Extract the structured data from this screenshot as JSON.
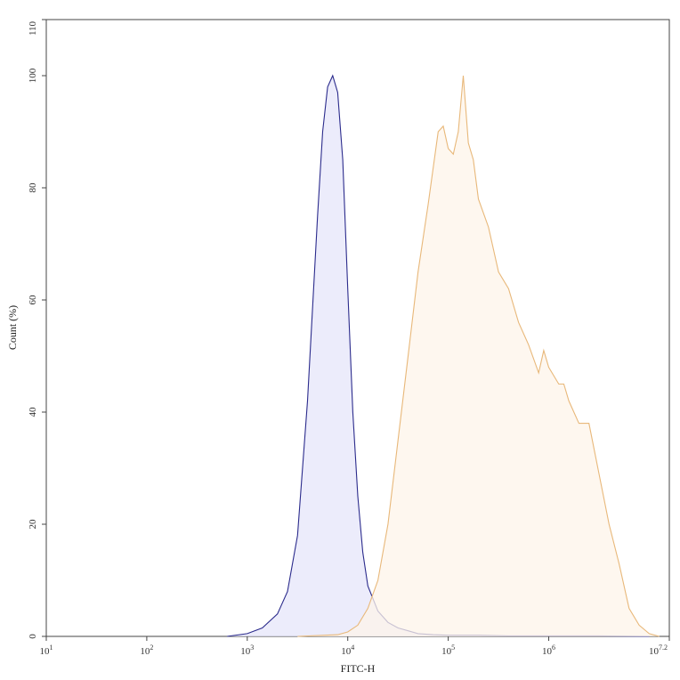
{
  "chart_data": {
    "type": "area",
    "xlabel": "FITC-H",
    "ylabel": "Count (%)",
    "xscale": "log",
    "xlim": [
      1,
      7.2
    ],
    "ylim": [
      0,
      110
    ],
    "x_ticks": [
      {
        "value": 1,
        "base": "10",
        "exp": "1"
      },
      {
        "value": 2,
        "base": "10",
        "exp": "2"
      },
      {
        "value": 3,
        "base": "10",
        "exp": "3"
      },
      {
        "value": 4,
        "base": "10",
        "exp": "4"
      },
      {
        "value": 5,
        "base": "10",
        "exp": "5"
      },
      {
        "value": 6,
        "base": "10",
        "exp": "6"
      },
      {
        "value": 7.2,
        "base": "10",
        "exp": "7.2"
      }
    ],
    "y_ticks": [
      "0",
      "20",
      "40",
      "60",
      "80",
      "100",
      "110"
    ],
    "grid": false,
    "series": [
      {
        "color": "#2b2b8c",
        "fill": "#e6e6fa",
        "x": [
          2.8,
          3.0,
          3.15,
          3.3,
          3.4,
          3.5,
          3.6,
          3.7,
          3.75,
          3.8,
          3.85,
          3.9,
          3.95,
          4.0,
          4.05,
          4.1,
          4.15,
          4.2,
          4.3,
          4.4,
          4.5,
          4.6,
          4.7,
          4.85,
          5.0,
          5.3,
          5.6,
          6.0,
          6.5,
          7.0
        ],
        "y": [
          0,
          0.5,
          1.5,
          4,
          8,
          18,
          42,
          75,
          90,
          98,
          100,
          97,
          85,
          62,
          40,
          25,
          15,
          9,
          4.5,
          2.5,
          1.5,
          1,
          0.5,
          0.3,
          0.2,
          0.2,
          0.1,
          0.1,
          0.1,
          0
        ]
      },
      {
        "color": "#e8b87a",
        "fill": "#fdf4ea",
        "x": [
          3.5,
          3.9,
          4.0,
          4.1,
          4.2,
          4.3,
          4.4,
          4.5,
          4.6,
          4.7,
          4.8,
          4.9,
          4.95,
          5.0,
          5.05,
          5.1,
          5.15,
          5.2,
          5.25,
          5.3,
          5.4,
          5.5,
          5.6,
          5.7,
          5.8,
          5.9,
          5.95,
          6.0,
          6.1,
          6.15,
          6.2,
          6.3,
          6.4,
          6.5,
          6.6,
          6.7,
          6.8,
          6.9,
          7.0,
          7.1
        ],
        "y": [
          0,
          0.3,
          0.8,
          2,
          5,
          10,
          20,
          35,
          50,
          65,
          77,
          90,
          91,
          87,
          86,
          90,
          100,
          88,
          85,
          78,
          73,
          65,
          62,
          56,
          52,
          47,
          51,
          48,
          45,
          45,
          42,
          38,
          38,
          29,
          20,
          13,
          5,
          2,
          0.5,
          0
        ]
      }
    ]
  }
}
